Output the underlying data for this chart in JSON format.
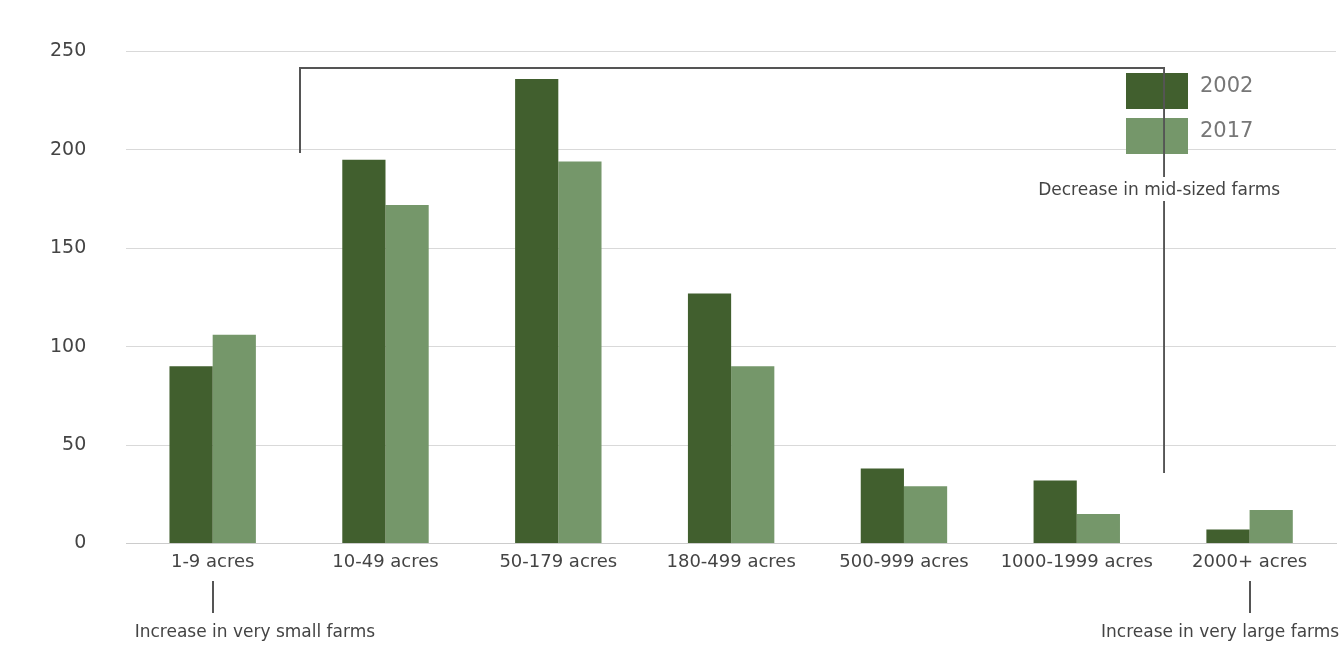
{
  "chart_data": {
    "type": "bar",
    "categories": [
      "1-9 acres",
      "10-49 acres",
      "50-179 acres",
      "180-499 acres",
      "500-999 acres",
      "1000-1999 acres",
      "2000+ acres"
    ],
    "series": [
      {
        "name": "2002",
        "color": "#415f2e",
        "values": [
          90,
          195,
          236,
          127,
          38,
          32,
          7
        ]
      },
      {
        "name": "2017",
        "color": "#75976a",
        "values": [
          106,
          172,
          194,
          90,
          29,
          15,
          17
        ]
      }
    ],
    "ylim": [
      0,
      250
    ],
    "yticks": [
      0,
      50,
      100,
      150,
      200,
      250
    ],
    "grid": "y",
    "legend": "top right",
    "annotations": [
      "Decrease in mid-sized farms",
      "Increase in very small farms",
      "Increase in very large farms"
    ]
  }
}
